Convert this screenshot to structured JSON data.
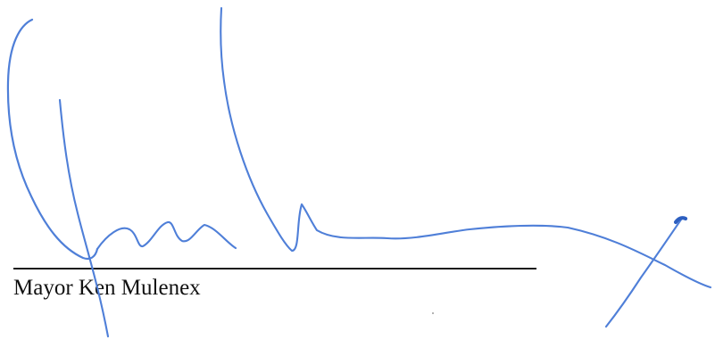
{
  "signature_block": {
    "signer_name": "Mayor Ken Mulenex",
    "signature_text": "Ken Mulenex",
    "ink_color": "#4f7fd8"
  }
}
